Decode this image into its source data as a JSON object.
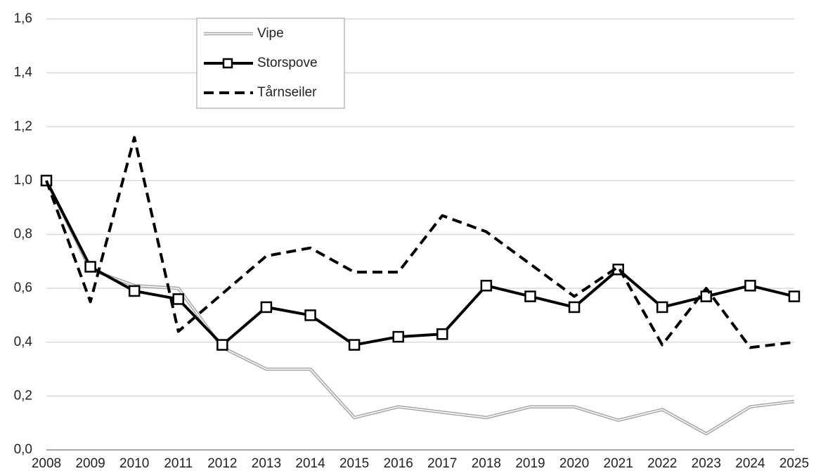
{
  "chart_data": {
    "type": "line",
    "categories": [
      "2008",
      "2009",
      "2010",
      "2011",
      "2012",
      "2013",
      "2014",
      "2015",
      "2016",
      "2017",
      "2018",
      "2019",
      "2020",
      "2021",
      "2022",
      "2023",
      "2024",
      "2025"
    ],
    "series": [
      {
        "name": "Vipe",
        "color": "#a6a6a6",
        "style": "double",
        "values": [
          1.0,
          0.67,
          0.61,
          0.6,
          0.38,
          0.3,
          0.3,
          0.12,
          0.16,
          0.14,
          0.12,
          0.16,
          0.16,
          0.11,
          0.15,
          0.06,
          0.16,
          0.18
        ]
      },
      {
        "name": "Storspove",
        "color": "#000000",
        "style": "solid",
        "marker": "square",
        "values": [
          1.0,
          0.68,
          0.59,
          0.56,
          0.39,
          0.53,
          0.5,
          0.39,
          0.42,
          0.43,
          0.61,
          0.57,
          0.53,
          0.67,
          0.53,
          0.57,
          0.61,
          0.57
        ]
      },
      {
        "name": "Tårnseiler",
        "color": "#000000",
        "style": "dashed",
        "values": [
          1.0,
          0.55,
          1.16,
          0.44,
          0.58,
          0.72,
          0.75,
          0.66,
          0.66,
          0.87,
          0.81,
          0.69,
          0.57,
          0.68,
          0.39,
          0.6,
          0.38,
          0.4
        ]
      }
    ],
    "ylim": [
      0,
      1.6
    ],
    "yticks": [
      {
        "value": 0,
        "label": "0,0"
      },
      {
        "value": 0.2,
        "label": "0,2"
      },
      {
        "value": 0.4,
        "label": "0,4"
      },
      {
        "value": 0.6,
        "label": "0,6"
      },
      {
        "value": 0.8,
        "label": "0,8"
      },
      {
        "value": 1.0,
        "label": "1,0"
      },
      {
        "value": 1.2,
        "label": "1,2"
      },
      {
        "value": 1.4,
        "label": "1,4"
      },
      {
        "value": 1.6,
        "label": "1,6"
      }
    ],
    "grid": true,
    "legend": "upper left"
  }
}
